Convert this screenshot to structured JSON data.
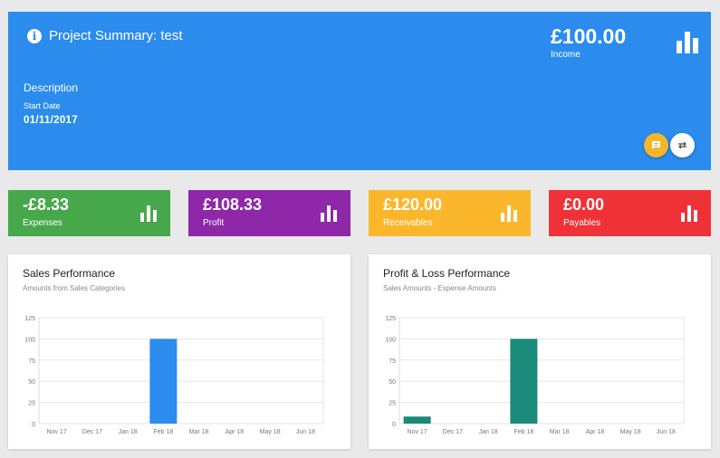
{
  "project": {
    "title": "Project Summary: test",
    "description_label": "Description",
    "start_date_label": "Start Date",
    "start_date": "01/11/2017"
  },
  "income": {
    "amount": "£100.00",
    "label": "Income"
  },
  "stats": {
    "expenses": {
      "amount": "-£8.33",
      "label": "Expenses",
      "color": "#47a84b"
    },
    "profit": {
      "amount": "£108.33",
      "label": "Profit",
      "color": "#8e27a8"
    },
    "receivables": {
      "amount": "£120.00",
      "label": "Receivables",
      "color": "#fbb72c"
    },
    "payables": {
      "amount": "£0.00",
      "label": "Payables",
      "color": "#ee3237"
    }
  },
  "colors": {
    "hero": "#2b8cee",
    "sales_bar": "#2b8cee",
    "pl_bar": "#1a8a7a"
  },
  "icons": {
    "info": "info-icon",
    "chart": "bar-chart-icon",
    "chat": "chat-icon",
    "swap": "swap-icon"
  },
  "chart_data": [
    {
      "type": "bar",
      "title": "Sales Performance",
      "subtitle": "Amounts from Sales Categories",
      "categories": [
        "Nov 17",
        "Dec 17",
        "Jan 18",
        "Feb 18",
        "Mar 18",
        "Apr 18",
        "May 18",
        "Jun 18"
      ],
      "values": [
        0,
        0,
        0,
        100,
        0,
        0,
        0,
        0
      ],
      "yticks": [
        0,
        25,
        50,
        75,
        100,
        125
      ],
      "ylim": [
        0,
        125
      ],
      "grid": true,
      "color": "#2b8cee"
    },
    {
      "type": "bar",
      "title": "Profit & Loss Performance",
      "subtitle": "Sales Amounts - Expense Amounts",
      "categories": [
        "Nov 17",
        "Dec 17",
        "Jan 18",
        "Feb 18",
        "Mar 18",
        "Apr 18",
        "May 18",
        "Jun 18"
      ],
      "values": [
        8.33,
        0,
        0,
        100,
        0,
        0,
        0,
        0
      ],
      "yticks": [
        0,
        25,
        50,
        75,
        100,
        125
      ],
      "ylim": [
        0,
        125
      ],
      "grid": true,
      "color": "#1a8a7a"
    }
  ]
}
